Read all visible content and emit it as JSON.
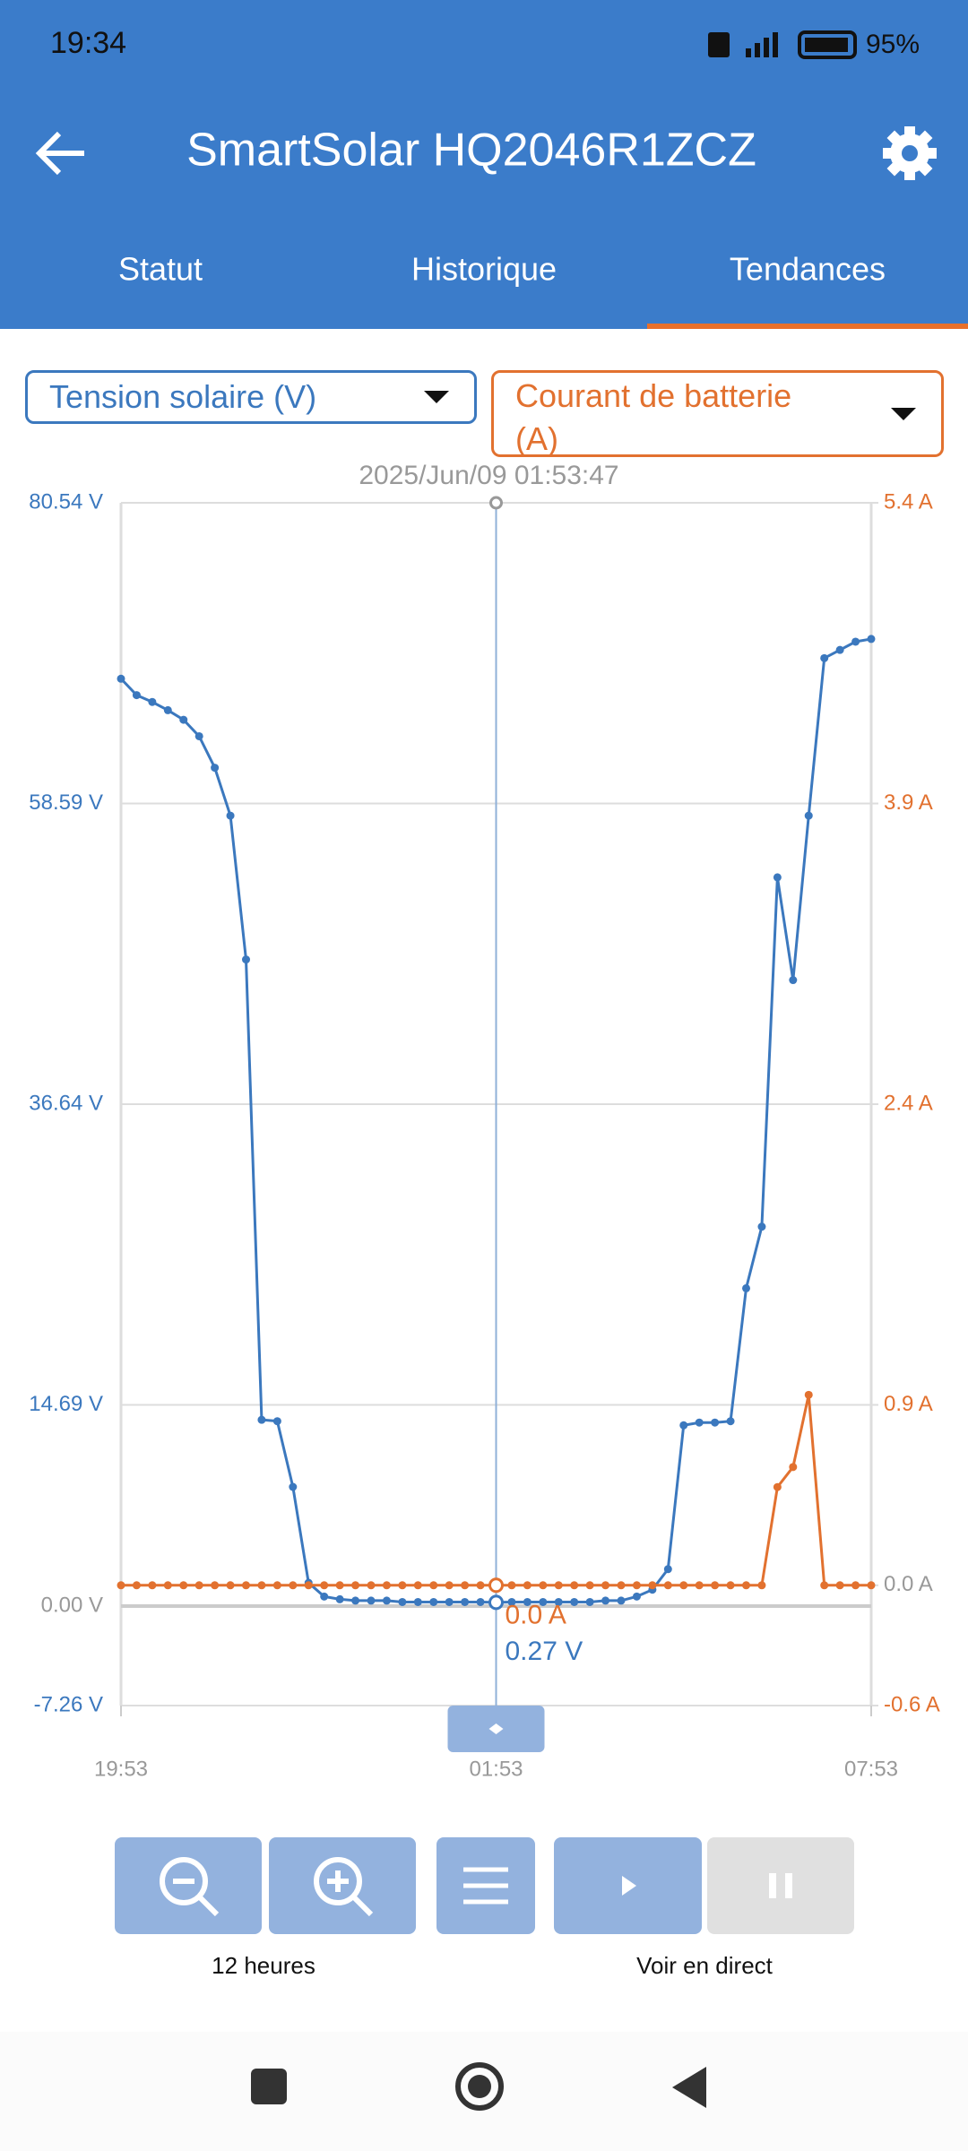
{
  "status_bar": {
    "time": "19:34",
    "battery": "95%"
  },
  "header": {
    "title": "SmartSolar HQ2046R1ZCZ"
  },
  "tabs": [
    "Statut",
    "Historique",
    "Tendances"
  ],
  "selectors": [
    "Tension solaire (V)",
    "Courant de batterie (A)"
  ],
  "chart_data": {
    "type": "line",
    "x": [
      "19:53",
      "20:08",
      "20:23",
      "20:38",
      "20:53",
      "21:08",
      "21:23",
      "21:38",
      "21:53",
      "22:08",
      "22:23",
      "22:38",
      "22:53",
      "23:08",
      "23:23",
      "23:38",
      "23:53",
      "00:08",
      "00:23",
      "00:38",
      "00:53",
      "01:08",
      "01:23",
      "01:38",
      "01:53",
      "02:08",
      "02:23",
      "02:38",
      "02:53",
      "03:08",
      "03:23",
      "03:38",
      "03:53",
      "04:08",
      "04:23",
      "04:38",
      "04:53",
      "05:08",
      "05:23",
      "05:38",
      "05:53",
      "06:08",
      "06:23",
      "06:38",
      "06:53",
      "07:08",
      "07:23",
      "07:38",
      "07:53"
    ],
    "series": [
      {
        "color": "#3b78be",
        "values": [
          67.7,
          66.5,
          66.0,
          65.4,
          64.7,
          63.5,
          61.2,
          57.7,
          47.2,
          13.6,
          13.5,
          8.7,
          1.7,
          0.7,
          0.5,
          0.4,
          0.4,
          0.4,
          0.3,
          0.3,
          0.3,
          0.3,
          0.3,
          0.3,
          0.27,
          0.3,
          0.3,
          0.3,
          0.3,
          0.3,
          0.3,
          0.4,
          0.4,
          0.7,
          1.2,
          2.7,
          13.2,
          13.4,
          13.4,
          13.5,
          23.2,
          27.7,
          53.2,
          45.7,
          57.7,
          69.2,
          69.8,
          70.4,
          70.6
        ]
      },
      {
        "color": "#e2712f",
        "axis": "y2",
        "values": [
          0,
          0,
          0,
          0,
          0,
          0,
          0,
          0,
          0,
          0,
          0,
          0,
          0,
          0,
          0,
          0,
          0,
          0,
          0,
          0,
          0,
          0,
          0,
          0,
          0,
          0,
          0,
          0,
          0,
          0,
          0,
          0,
          0,
          0,
          0,
          0,
          0,
          0,
          0,
          0,
          0,
          0,
          0.49,
          0.59,
          0.95,
          0,
          0,
          0,
          0
        ]
      }
    ],
    "xlim": [
      "19:53",
      "07:53"
    ],
    "xticks": [
      "19:53",
      "01:53",
      "07:53"
    ],
    "ylim": [
      -7.26,
      80.54
    ],
    "yticks": [
      {
        "value": -7.26,
        "label": "-7.26 V"
      },
      {
        "value": 0,
        "label": "0.00 V"
      },
      {
        "value": 14.69,
        "label": "14.69 V"
      },
      {
        "value": 36.64,
        "label": "36.64 V"
      },
      {
        "value": 58.59,
        "label": "58.59 V"
      },
      {
        "value": 80.54,
        "label": "80.54 V"
      }
    ],
    "y2lim": [
      -0.6,
      5.4
    ],
    "y2ticks": [
      {
        "value": -0.6,
        "label": "-0.6 A"
      },
      {
        "value": 0,
        "label": "0.0 A"
      },
      {
        "value": 0.9,
        "label": "0.9 A"
      },
      {
        "value": 2.4,
        "label": "2.4 A"
      },
      {
        "value": 3.9,
        "label": "3.9 A"
      },
      {
        "value": 5.4,
        "label": "5.4 A"
      }
    ],
    "grid": true,
    "cursor": {
      "label": "2025/Jun/09 01:53:47",
      "x": "01:53",
      "value": 0.27,
      "value_label": "0.27 V",
      "value2": 0,
      "value2_label": "0.0 A"
    }
  },
  "controls": {
    "zoom_label": "12 heures",
    "live_label": "Voir en direct"
  }
}
